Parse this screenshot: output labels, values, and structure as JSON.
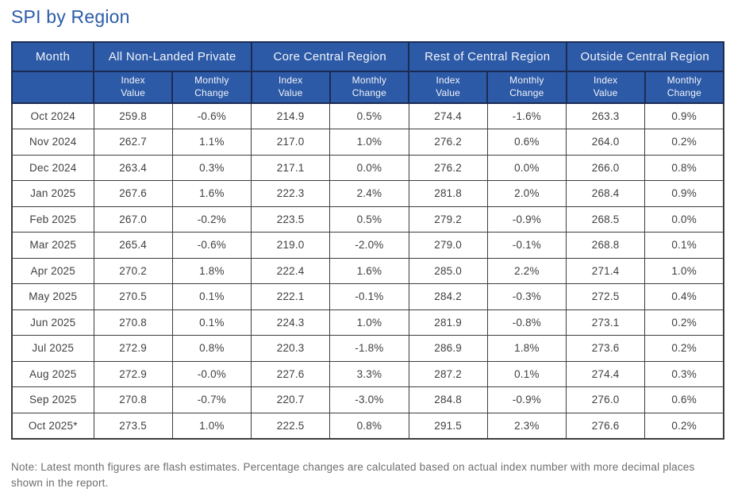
{
  "page_title": "SPI by Region",
  "colors": {
    "title_text": "#2b5caa",
    "header_bg": "#2d5aa7",
    "header_border": "#1b2b52",
    "header_text": "#f2f5fa",
    "body_border": "#3d3d3d",
    "body_text": "#404040",
    "note_text": "#6e6e6e"
  },
  "table": {
    "column_groups": [
      {
        "label": "Month"
      },
      {
        "label": "All Non-Landed Private"
      },
      {
        "label": "Core Central Region"
      },
      {
        "label": "Rest of Central Region"
      },
      {
        "label": "Outside Central Region"
      }
    ],
    "sub_columns": [
      "Index Value",
      "Monthly Change",
      "Index Value",
      "Monthly Change",
      "Index Value",
      "Monthly Change",
      "Index Value",
      "Monthly Change"
    ],
    "rows": [
      {
        "month": "Oct 2024",
        "values": [
          "259.8",
          "-0.6%",
          "214.9",
          "0.5%",
          "274.4",
          "-1.6%",
          "263.3",
          "0.9%"
        ]
      },
      {
        "month": "Nov 2024",
        "values": [
          "262.7",
          "1.1%",
          "217.0",
          "1.0%",
          "276.2",
          "0.6%",
          "264.0",
          "0.2%"
        ]
      },
      {
        "month": "Dec 2024",
        "values": [
          "263.4",
          "0.3%",
          "217.1",
          "0.0%",
          "276.2",
          "0.0%",
          "266.0",
          "0.8%"
        ]
      },
      {
        "month": "Jan 2025",
        "values": [
          "267.6",
          "1.6%",
          "222.3",
          "2.4%",
          "281.8",
          "2.0%",
          "268.4",
          "0.9%"
        ]
      },
      {
        "month": "Feb 2025",
        "values": [
          "267.0",
          "-0.2%",
          "223.5",
          "0.5%",
          "279.2",
          "-0.9%",
          "268.5",
          "0.0%"
        ]
      },
      {
        "month": "Mar 2025",
        "values": [
          "265.4",
          "-0.6%",
          "219.0",
          "-2.0%",
          "279.0",
          "-0.1%",
          "268.8",
          "0.1%"
        ]
      },
      {
        "month": "Apr 2025",
        "values": [
          "270.2",
          "1.8%",
          "222.4",
          "1.6%",
          "285.0",
          "2.2%",
          "271.4",
          "1.0%"
        ]
      },
      {
        "month": "May 2025",
        "values": [
          "270.5",
          "0.1%",
          "222.1",
          "-0.1%",
          "284.2",
          "-0.3%",
          "272.5",
          "0.4%"
        ]
      },
      {
        "month": "Jun 2025",
        "values": [
          "270.8",
          "0.1%",
          "224.3",
          "1.0%",
          "281.9",
          "-0.8%",
          "273.1",
          "0.2%"
        ]
      },
      {
        "month": "Jul 2025",
        "values": [
          "272.9",
          "0.8%",
          "220.3",
          "-1.8%",
          "286.9",
          "1.8%",
          "273.6",
          "0.2%"
        ]
      },
      {
        "month": "Aug 2025",
        "values": [
          "272.9",
          "-0.0%",
          "227.6",
          "3.3%",
          "287.2",
          "0.1%",
          "274.4",
          "0.3%"
        ]
      },
      {
        "month": "Sep 2025",
        "values": [
          "270.8",
          "-0.7%",
          "220.7",
          "-3.0%",
          "284.8",
          "-0.9%",
          "276.0",
          "0.6%"
        ]
      },
      {
        "month": "Oct 2025*",
        "values": [
          "273.5",
          "1.0%",
          "222.5",
          "0.8%",
          "291.5",
          "2.3%",
          "276.6",
          "0.2%"
        ]
      }
    ]
  },
  "note": "Note: Latest month figures are flash estimates. Percentage changes are calculated based on actual index number with more decimal places shown in the report.",
  "chart_data": {
    "type": "table",
    "title": "SPI by Region",
    "categories": [
      "Oct 2024",
      "Nov 2024",
      "Dec 2024",
      "Jan 2025",
      "Feb 2025",
      "Mar 2025",
      "Apr 2025",
      "May 2025",
      "Jun 2025",
      "Jul 2025",
      "Aug 2025",
      "Sep 2025",
      "Oct 2025*"
    ],
    "series": [
      {
        "name": "All Non-Landed Private Index Value",
        "values": [
          259.8,
          262.7,
          263.4,
          267.6,
          267.0,
          265.4,
          270.2,
          270.5,
          270.8,
          272.9,
          272.9,
          270.8,
          273.5
        ]
      },
      {
        "name": "All Non-Landed Private Monthly Change (%)",
        "values": [
          -0.6,
          1.1,
          0.3,
          1.6,
          -0.2,
          -0.6,
          1.8,
          0.1,
          0.1,
          0.8,
          -0.0,
          -0.7,
          1.0
        ]
      },
      {
        "name": "Core Central Region Index Value",
        "values": [
          214.9,
          217.0,
          217.1,
          222.3,
          223.5,
          219.0,
          222.4,
          222.1,
          224.3,
          220.3,
          227.6,
          220.7,
          222.5
        ]
      },
      {
        "name": "Core Central Region Monthly Change (%)",
        "values": [
          0.5,
          1.0,
          0.0,
          2.4,
          0.5,
          -2.0,
          1.6,
          -0.1,
          1.0,
          -1.8,
          3.3,
          -3.0,
          0.8
        ]
      },
      {
        "name": "Rest of Central Region Index Value",
        "values": [
          274.4,
          276.2,
          276.2,
          281.8,
          279.2,
          279.0,
          285.0,
          284.2,
          281.9,
          286.9,
          287.2,
          284.8,
          291.5
        ]
      },
      {
        "name": "Rest of Central Region Monthly Change (%)",
        "values": [
          -1.6,
          0.6,
          0.0,
          2.0,
          -0.9,
          -0.1,
          2.2,
          -0.3,
          -0.8,
          1.8,
          0.1,
          -0.9,
          2.3
        ]
      },
      {
        "name": "Outside Central Region Index Value",
        "values": [
          263.3,
          264.0,
          266.0,
          268.4,
          268.5,
          268.8,
          271.4,
          272.5,
          273.1,
          273.6,
          274.4,
          276.0,
          276.6
        ]
      },
      {
        "name": "Outside Central Region Monthly Change (%)",
        "values": [
          0.9,
          0.2,
          0.8,
          0.9,
          0.0,
          0.1,
          1.0,
          0.4,
          0.2,
          0.2,
          0.3,
          0.6,
          0.2
        ]
      }
    ]
  }
}
